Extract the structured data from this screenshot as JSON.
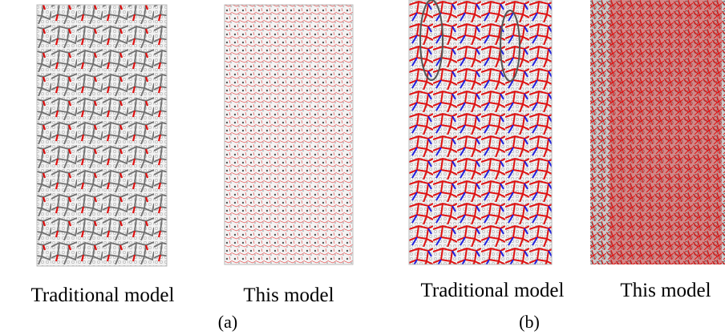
{
  "panels": [
    {
      "caption": "Traditional model"
    },
    {
      "caption": "This model"
    },
    {
      "caption": "Traditional model"
    },
    {
      "caption": "This model"
    }
  ],
  "groups": [
    {
      "label": "(a)"
    },
    {
      "label": "(b)"
    }
  ]
}
